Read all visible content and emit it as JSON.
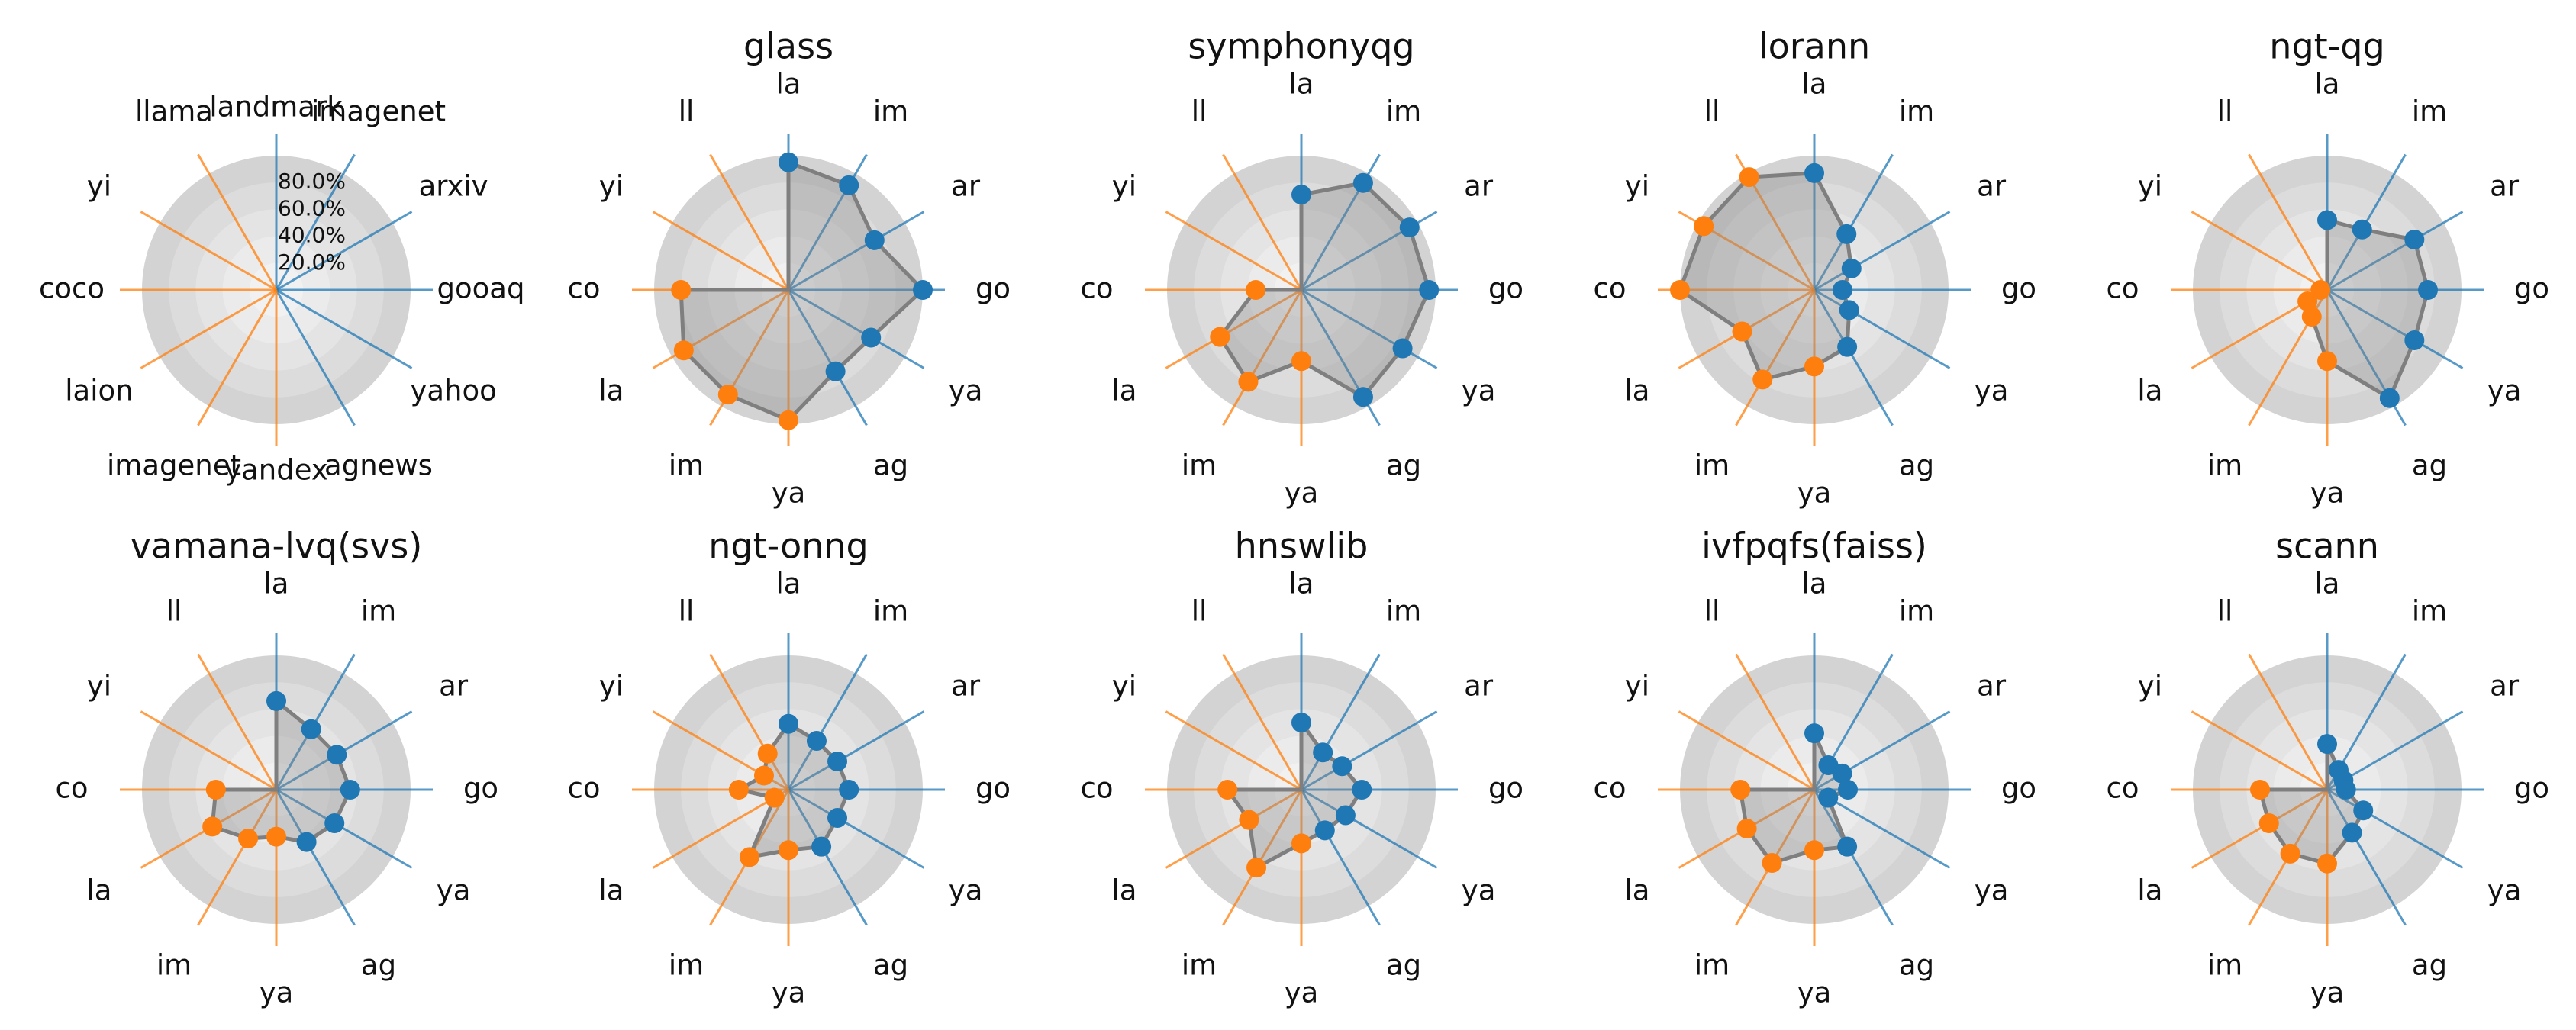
{
  "chart_data": {
    "type": "radar",
    "title": "",
    "labels_full": [
      "landmark",
      "imagenet",
      "arxiv",
      "gooaq",
      "yahoo",
      "agnews",
      "yandex",
      "imagenet",
      "laion",
      "coco",
      "yi",
      "llama"
    ],
    "labels_short": [
      "la",
      "im",
      "ar",
      "go",
      "ya",
      "ag",
      "ya",
      "im",
      "la",
      "co",
      "yi",
      "ll"
    ],
    "radial_ticks": [
      "20.0%",
      "40.0%",
      "60.0%",
      "80.0%"
    ],
    "rlim": [
      0,
      100
    ],
    "axis_colors": [
      "#1f77b4",
      "#1f77b4",
      "#1f77b4",
      "#1f77b4",
      "#1f77b4",
      "#1f77b4",
      "#ff7f0e",
      "#ff7f0e",
      "#ff7f0e",
      "#ff7f0e",
      "#ff7f0e",
      "#ff7f0e"
    ],
    "panels": [
      {
        "title": "",
        "legend": true,
        "values": [
          0,
          0,
          0,
          0,
          0,
          0,
          0,
          0,
          0,
          0,
          0,
          0
        ]
      },
      {
        "title": "glass",
        "legend": false,
        "values": [
          95,
          90,
          74,
          100,
          71,
          70,
          97,
          90,
          90,
          80,
          0,
          0
        ]
      },
      {
        "title": "symphonyqg",
        "legend": false,
        "values": [
          71,
          92,
          93,
          95,
          87,
          92,
          53,
          79,
          70,
          34,
          0,
          0
        ]
      },
      {
        "title": "lorann",
        "legend": false,
        "values": [
          87,
          48,
          32,
          21,
          30,
          49,
          57,
          77,
          62,
          100,
          95,
          97
        ]
      },
      {
        "title": "ngt-qg",
        "legend": false,
        "values": [
          52,
          52,
          75,
          75,
          75,
          93,
          53,
          23,
          17,
          5,
          0,
          0
        ]
      },
      {
        "title": "vamana-lvq(svs)",
        "legend": false,
        "values": [
          66,
          52,
          52,
          55,
          50,
          45,
          35,
          42,
          55,
          45,
          0,
          0
        ]
      },
      {
        "title": "ngt-onng",
        "legend": false,
        "values": [
          49,
          42,
          42,
          45,
          42,
          49,
          45,
          58,
          12,
          37,
          21,
          31
        ]
      },
      {
        "title": "hnswlib",
        "legend": false,
        "values": [
          50,
          32,
          35,
          45,
          38,
          35,
          40,
          67,
          45,
          55,
          0,
          0
        ]
      },
      {
        "title": "ivfpqfs(faiss)",
        "legend": false,
        "values": [
          42,
          21,
          24,
          25,
          12,
          49,
          45,
          63,
          58,
          55,
          0,
          0
        ]
      },
      {
        "title": "scann",
        "legend": false,
        "values": [
          34,
          17,
          14,
          14,
          31,
          37,
          55,
          55,
          50,
          50,
          0,
          0
        ]
      }
    ]
  }
}
